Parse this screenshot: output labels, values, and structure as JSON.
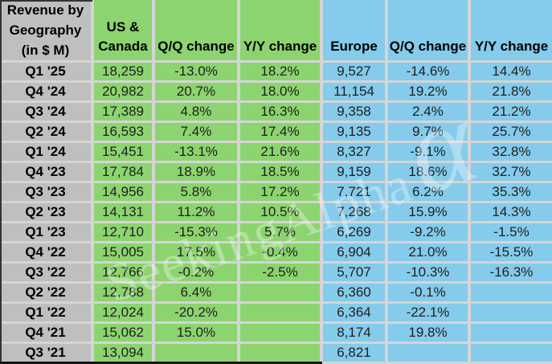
{
  "table": {
    "corner_title": "Revenue by\nGeography\n(in $ M)",
    "col_headers": [
      "US &\nCanada",
      "Q/Q change",
      "Y/Y change",
      "Europe",
      "Q/Q change",
      "Y/Y change"
    ],
    "rows": [
      [
        "Q1 '25",
        "18,259",
        "-13.0%",
        "18.2%",
        "9,527",
        "-14.6%",
        "14.4%"
      ],
      [
        "Q4 '24",
        "20,982",
        "20.7%",
        "18.0%",
        "11,154",
        "19.2%",
        "21.8%"
      ],
      [
        "Q3 '24",
        "17,389",
        "4.8%",
        "16.3%",
        "9,358",
        "2.4%",
        "21.2%"
      ],
      [
        "Q2 '24",
        "16,593",
        "7.4%",
        "17.4%",
        "9,135",
        "9.7%",
        "25.7%"
      ],
      [
        "Q1 '24",
        "15,451",
        "-13.1%",
        "21.6%",
        "8,327",
        "-9.1%",
        "32.8%"
      ],
      [
        "Q4 '23",
        "17,784",
        "18.9%",
        "18.5%",
        "9,159",
        "18.6%",
        "32.7%"
      ],
      [
        "Q3 '23",
        "14,956",
        "5.8%",
        "17.2%",
        "7,721",
        "6.2%",
        "35.3%"
      ],
      [
        "Q2 '23",
        "14,131",
        "11.2%",
        "10.5%",
        "7,268",
        "15.9%",
        "14.3%"
      ],
      [
        "Q1 '23",
        "12,710",
        "-15.3%",
        "5.7%",
        "6,269",
        "-9.2%",
        "-1.5%"
      ],
      [
        "Q4 '22",
        "15,005",
        "17.5%",
        "-0.4%",
        "6,904",
        "21.0%",
        "-15.5%"
      ],
      [
        "Q3 '22",
        "12,766",
        "-0.2%",
        "-2.5%",
        "5,707",
        "-10.3%",
        "-16.3%"
      ],
      [
        "Q2 '22",
        "12,788",
        "6.4%",
        "",
        "6,360",
        "-0.1%",
        ""
      ],
      [
        "Q1 '22",
        "12,024",
        "-20.2%",
        "",
        "6,364",
        "-22.1%",
        ""
      ],
      [
        "Q4 '21",
        "15,062",
        "15.0%",
        "",
        "8,174",
        "19.8%",
        ""
      ],
      [
        "Q3 '21",
        "13,094",
        "",
        "",
        "6,821",
        "",
        ""
      ]
    ]
  },
  "watermark": {
    "text": "SeekingAlpha",
    "alpha": "α"
  },
  "colors": {
    "label_gray": "#BFBFBF",
    "us_canada_green": "#8CD46F",
    "europe_blue": "#85CBEB",
    "gridline": "#D5D5D5",
    "text": "#1F1F1F"
  },
  "chart_data": {
    "type": "table",
    "title": "Revenue by Geography (in $ M)",
    "row_labels": [
      "Q1 '25",
      "Q4 '24",
      "Q3 '24",
      "Q2 '24",
      "Q1 '24",
      "Q4 '23",
      "Q3 '23",
      "Q2 '23",
      "Q1 '23",
      "Q4 '22",
      "Q3 '22",
      "Q2 '22",
      "Q1 '22",
      "Q4 '21",
      "Q3 '21"
    ],
    "series": [
      {
        "name": "US & Canada revenue ($M)",
        "values": [
          18259,
          20982,
          17389,
          16593,
          15451,
          17784,
          14956,
          14131,
          12710,
          15005,
          12766,
          12788,
          12024,
          15062,
          13094
        ]
      },
      {
        "name": "US & Canada Q/Q change (%)",
        "values": [
          -13.0,
          20.7,
          4.8,
          7.4,
          -13.1,
          18.9,
          5.8,
          11.2,
          -15.3,
          17.5,
          -0.2,
          6.4,
          -20.2,
          15.0,
          null
        ]
      },
      {
        "name": "US & Canada Y/Y change (%)",
        "values": [
          18.2,
          18.0,
          16.3,
          17.4,
          21.6,
          18.5,
          17.2,
          10.5,
          5.7,
          -0.4,
          -2.5,
          null,
          null,
          null,
          null
        ]
      },
      {
        "name": "Europe revenue ($M)",
        "values": [
          9527,
          11154,
          9358,
          9135,
          8327,
          9159,
          7721,
          7268,
          6269,
          6904,
          5707,
          6360,
          6364,
          8174,
          6821
        ]
      },
      {
        "name": "Europe Q/Q change (%)",
        "values": [
          -14.6,
          19.2,
          2.4,
          9.7,
          -9.1,
          18.6,
          6.2,
          15.9,
          -9.2,
          21.0,
          -10.3,
          -0.1,
          -22.1,
          19.8,
          null
        ]
      },
      {
        "name": "Europe Y/Y change (%)",
        "values": [
          14.4,
          21.8,
          21.2,
          25.7,
          32.8,
          32.7,
          35.3,
          14.3,
          -1.5,
          -15.5,
          -16.3,
          null,
          null,
          null,
          null
        ]
      }
    ]
  }
}
